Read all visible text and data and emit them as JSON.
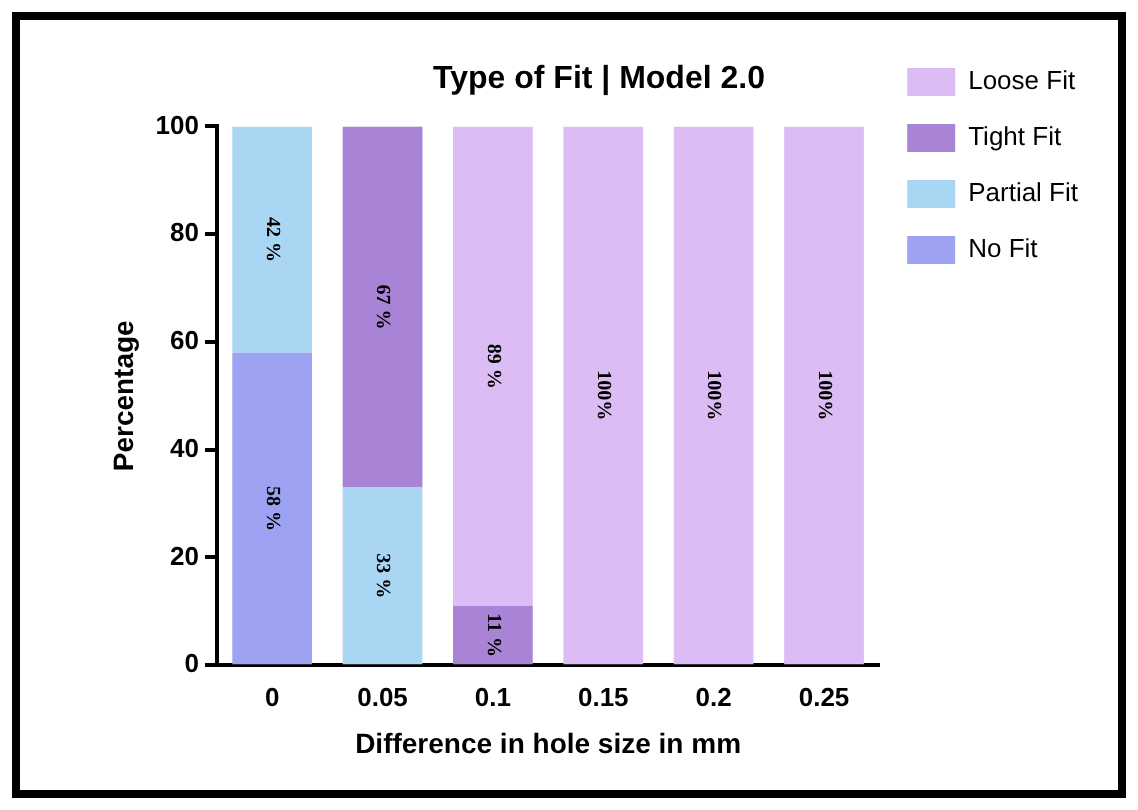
{
  "chart_data": {
    "type": "bar",
    "title": "Type of Fit | Model 2.0",
    "xlabel": "Difference in hole size in mm",
    "ylabel": "Percentage",
    "categories": [
      "0",
      "0.05",
      "0.1",
      "0.15",
      "0.2",
      "0.25"
    ],
    "stacked": true,
    "ylim": [
      0,
      100
    ],
    "yticks": [
      0,
      20,
      40,
      60,
      80,
      100
    ],
    "grid": false,
    "legend": "right",
    "series": [
      {
        "name": "No Fit",
        "color": "#9da3f2",
        "values": [
          58,
          null,
          null,
          null,
          null,
          null
        ],
        "value_labels": [
          "58 %",
          null,
          null,
          null,
          null,
          null
        ]
      },
      {
        "name": "Partial Fit",
        "color": "#a9d6f2",
        "values": [
          42,
          33,
          null,
          null,
          null,
          null
        ],
        "value_labels": [
          "42 %",
          "33 %",
          null,
          null,
          null,
          null
        ]
      },
      {
        "name": "Tight Fit",
        "color": "#a883d6",
        "values": [
          null,
          67,
          11,
          null,
          null,
          null
        ],
        "value_labels": [
          null,
          "67 %",
          "11 %",
          null,
          null,
          null
        ]
      },
      {
        "name": "Loose Fit",
        "color": "#dcbcf4",
        "values": [
          null,
          null,
          89,
          100,
          100,
          100
        ],
        "value_labels": [
          null,
          null,
          "89 %",
          "100%",
          "100%",
          "100%"
        ]
      }
    ]
  }
}
